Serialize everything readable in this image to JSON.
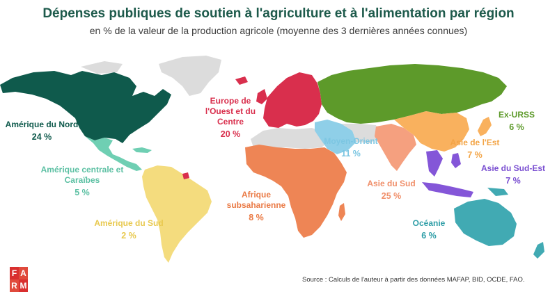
{
  "header": {
    "title": "Dépenses publiques de soutien à l'agriculture et à l'alimentation par région",
    "subtitle": "en % de la valeur de la production agricole (moyenne des 3 dernières années connues)"
  },
  "colors": {
    "amerique_nord": "#0f5a4c",
    "amerique_centrale": "#6fcfb3",
    "amerique_sud": "#f4dc7e",
    "europe": "#d92f4d",
    "afrique": "#ee8555",
    "moyen_orient": "#8fcfe8",
    "asie_sud": "#f5a07f",
    "ex_urss": "#5d9a2a",
    "asie_est": "#f9b15e",
    "asie_sud_est": "#8456d8",
    "oceanie": "#41aab3",
    "no_data": "#dcdcdc",
    "logo": "#d92f2f"
  },
  "regions": {
    "amerique_nord": {
      "label": "Amérique du Nord",
      "value": "24 %",
      "color": "#0f5a4c"
    },
    "amerique_centrale": {
      "label": "Amérique centrale et Caraïbes",
      "value": "5 %",
      "color": "#5cc0a3"
    },
    "amerique_sud": {
      "label": "Amérique du Sud",
      "value": "2 %",
      "color": "#e8c94f"
    },
    "europe": {
      "label": "Europe de l'Ouest et du Centre",
      "value": "20 %",
      "color": "#d92f4d"
    },
    "moyen_orient": {
      "label": "Moyen-Orient",
      "value": "11 %",
      "color": "#7cc6e2"
    },
    "afrique": {
      "label": "Afrique subsaharienne",
      "value": "8 %",
      "color": "#ea7a45"
    },
    "asie_sud": {
      "label": "Asie du Sud",
      "value": "25 %",
      "color": "#f08f6a"
    },
    "ex_urss": {
      "label": "Ex-URSS",
      "value": "6 %",
      "color": "#5d9a2a"
    },
    "asie_est": {
      "label": "Asie de l'Est",
      "value": "7 %",
      "color": "#f3a445"
    },
    "asie_sud_est": {
      "label": "Asie du Sud-Est",
      "value": "7 %",
      "color": "#7a4fd1"
    },
    "oceanie": {
      "label": "Océanie",
      "value": "6 %",
      "color": "#2f9ea7"
    }
  },
  "logo": {
    "letters": [
      "F",
      "A",
      "R",
      "M"
    ]
  },
  "source": "Source : Calculs de l'auteur à partir des données MAFAP, BID, OCDE, FAO."
}
